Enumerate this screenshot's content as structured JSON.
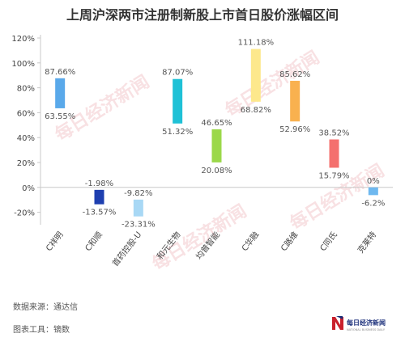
{
  "chart_data": {
    "type": "bar",
    "subtype": "floating-range",
    "title": "上周沪深两市注册制新股上市首日股价涨幅区间",
    "categories": [
      "C祥明",
      "C和顺",
      "首药控股-U",
      "和元生物",
      "均普智能",
      "C华融",
      "C路维",
      "C同氏",
      "克莱特"
    ],
    "ranges": [
      {
        "high": 87.66,
        "low": 63.55,
        "high_label": "87.66%",
        "low_label": "63.55%",
        "color": "#5aa9ea"
      },
      {
        "high": -1.98,
        "low": -13.57,
        "high_label": "-1.98%",
        "low_label": "-13.57%",
        "color": "#1e3fb0"
      },
      {
        "high": -9.82,
        "low": -23.31,
        "high_label": "-9.82%",
        "low_label": "-23.31%",
        "color": "#a8d8f5"
      },
      {
        "high": 87.07,
        "low": 51.32,
        "high_label": "87.07%",
        "low_label": "51.32%",
        "color": "#1fc1d6"
      },
      {
        "high": 46.65,
        "low": 20.08,
        "high_label": "46.65%",
        "low_label": "20.08%",
        "color": "#9bd84a"
      },
      {
        "high": 111.18,
        "low": 68.82,
        "high_label": "111.18%",
        "low_label": "68.82%",
        "color": "#fde88c"
      },
      {
        "high": 85.62,
        "low": 52.96,
        "high_label": "85.62%",
        "low_label": "52.96%",
        "color": "#f9b14f"
      },
      {
        "high": 38.52,
        "low": 15.79,
        "high_label": "38.52%",
        "low_label": "15.79%",
        "color": "#f4706e"
      },
      {
        "high": 0,
        "low": -6.2,
        "high_label": "0%",
        "low_label": "-6.2%",
        "color": "#6eb8ef"
      }
    ],
    "y_ticks": [
      {
        "value": 120,
        "label": "120%"
      },
      {
        "value": 100,
        "label": "100%"
      },
      {
        "value": 80,
        "label": "80%"
      },
      {
        "value": 60,
        "label": "60%"
      },
      {
        "value": 40,
        "label": "40%"
      },
      {
        "value": 20,
        "label": "20%"
      },
      {
        "value": 0,
        "label": "0%"
      },
      {
        "value": -20,
        "label": "-20%"
      }
    ],
    "ylim": [
      -30,
      120
    ],
    "grid": false,
    "legend": "none"
  },
  "footer": {
    "source": "数据来源：通达信",
    "tool": "图表工具：镝数"
  },
  "watermark_text": "每日经济新闻",
  "logo": {
    "name": "每日经济新闻",
    "subtext": "NATIONAL BUSINESS DAILY"
  },
  "colors": {
    "title": "#333333",
    "axis": "#c8c8c8",
    "text": "#555555",
    "logo_red": "#c9202c",
    "logo_blue": "#1b2f7a"
  }
}
